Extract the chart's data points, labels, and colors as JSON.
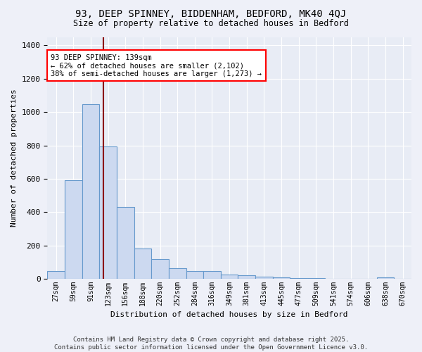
{
  "title1": "93, DEEP SPINNEY, BIDDENHAM, BEDFORD, MK40 4QJ",
  "title2": "Size of property relative to detached houses in Bedford",
  "xlabel": "Distribution of detached houses by size in Bedford",
  "ylabel": "Number of detached properties",
  "categories": [
    "27sqm",
    "59sqm",
    "91sqm",
    "123sqm",
    "156sqm",
    "188sqm",
    "220sqm",
    "252sqm",
    "284sqm",
    "316sqm",
    "349sqm",
    "381sqm",
    "413sqm",
    "445sqm",
    "477sqm",
    "509sqm",
    "541sqm",
    "574sqm",
    "606sqm",
    "638sqm",
    "670sqm"
  ],
  "values": [
    45,
    590,
    1045,
    795,
    430,
    180,
    120,
    65,
    45,
    45,
    25,
    20,
    15,
    10,
    5,
    5,
    0,
    0,
    0,
    10,
    0
  ],
  "bar_color": "#ccd9f0",
  "bar_edge_color": "#6699cc",
  "red_line_x": 2.72,
  "annotation_text": "93 DEEP SPINNEY: 139sqm\n← 62% of detached houses are smaller (2,102)\n38% of semi-detached houses are larger (1,273) →",
  "ylim": [
    0,
    1450
  ],
  "fig_bg_color": "#eef0f8",
  "ax_bg_color": "#e8ecf5",
  "footer_line1": "Contains HM Land Registry data © Crown copyright and database right 2025.",
  "footer_line2": "Contains public sector information licensed under the Open Government Licence v3.0."
}
